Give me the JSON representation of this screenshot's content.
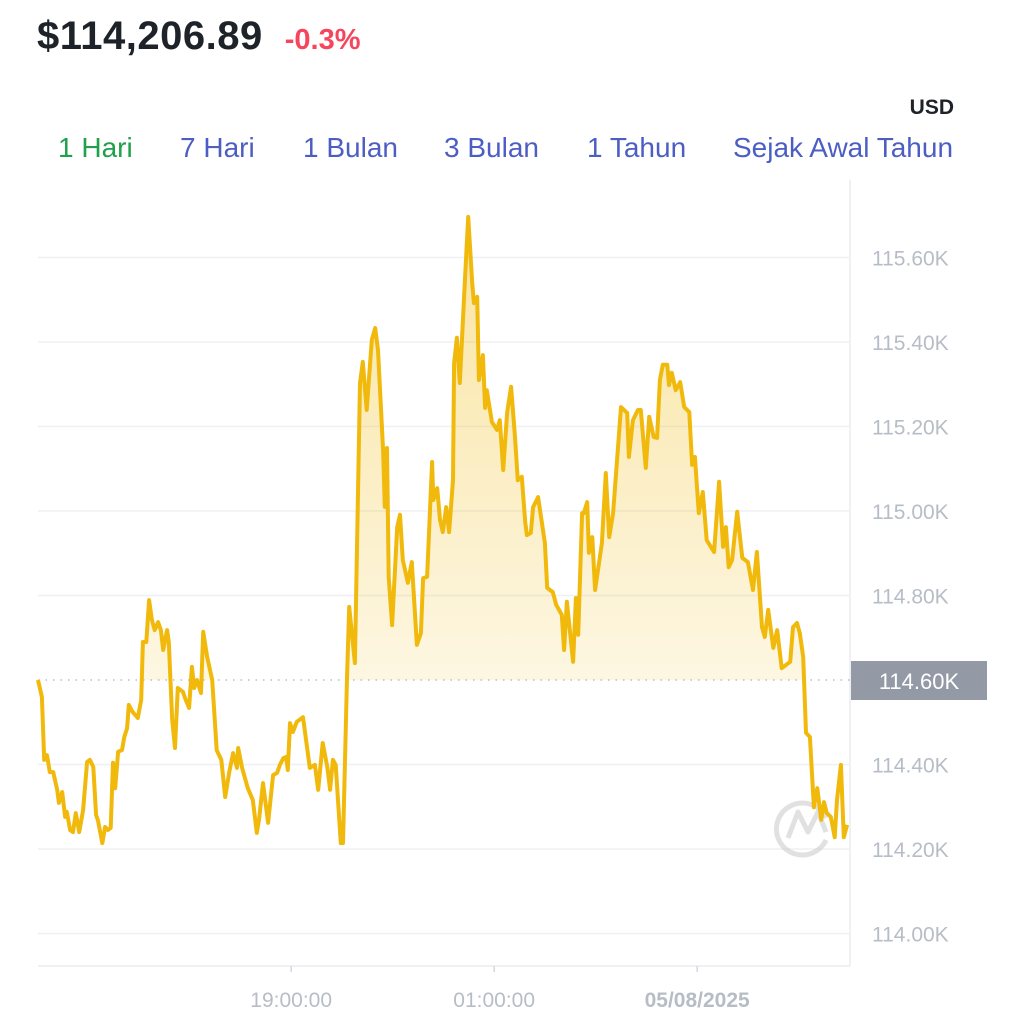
{
  "header": {
    "price": "$114,206.89",
    "change": "-0.3%",
    "change_color": "#f6465d",
    "currency": "USD"
  },
  "tabs": [
    {
      "label": "1 Hari",
      "active": true
    },
    {
      "label": "7 Hari",
      "active": false
    },
    {
      "label": "1 Bulan",
      "active": false
    },
    {
      "label": "3 Bulan",
      "active": false
    },
    {
      "label": "1 Tahun",
      "active": false
    },
    {
      "label": "Sejak Awal Tahun",
      "active": false
    }
  ],
  "colors": {
    "active_tab": "#1fa04a",
    "tab": "#4c5ec4",
    "line": "#f0b90b",
    "price_tag": "#939aa6"
  },
  "chart_data": {
    "type": "area",
    "title": "",
    "xlabel": "",
    "ylabel": "",
    "y_unit": "K USD",
    "ylim": [
      113.95,
      115.85
    ],
    "yticks": [
      "114.00K",
      "114.20K",
      "114.40K",
      "114.60K",
      "114.80K",
      "115.00K",
      "115.20K",
      "115.40K",
      "115.60K"
    ],
    "ytick_values": [
      114.0,
      114.2,
      114.4,
      114.6,
      114.8,
      115.0,
      115.2,
      115.4,
      115.6
    ],
    "xticks": [
      {
        "label": "19:00:00",
        "time": "19:00",
        "bold": false
      },
      {
        "label": "01:00:00",
        "time": "01:00",
        "bold": false
      },
      {
        "label": "05/08/2025",
        "time": "07:00",
        "bold": true
      }
    ],
    "baseline": 114.6,
    "baseline_label": "114.60K",
    "grid": true,
    "watermark": "CoinMarketCap logo",
    "series": [
      {
        "points": [
          [
            "11:31",
            114.6
          ],
          [
            "11:38",
            114.56
          ],
          [
            "11:42",
            114.411
          ],
          [
            "11:47",
            114.422
          ],
          [
            "11:52",
            114.382
          ],
          [
            "11:58",
            114.382
          ],
          [
            "12:05",
            114.34
          ],
          [
            "12:08",
            114.309
          ],
          [
            "12:14",
            114.335
          ],
          [
            "12:19",
            114.276
          ],
          [
            "12:22",
            114.288
          ],
          [
            "12:28",
            114.245
          ],
          [
            "12:33",
            114.24
          ],
          [
            "12:38",
            114.285
          ],
          [
            "12:44",
            114.24
          ],
          [
            "12:51",
            114.292
          ],
          [
            "12:58",
            114.406
          ],
          [
            "13:03",
            114.411
          ],
          [
            "13:09",
            114.394
          ],
          [
            "13:14",
            114.28
          ],
          [
            "13:17",
            114.269
          ],
          [
            "13:25",
            114.214
          ],
          [
            "13:30",
            114.252
          ],
          [
            "13:35",
            114.245
          ],
          [
            "13:40",
            114.25
          ],
          [
            "13:44",
            114.404
          ],
          [
            "13:48",
            114.344
          ],
          [
            "13:53",
            114.43
          ],
          [
            "14:00",
            114.434
          ],
          [
            "14:04",
            114.465
          ],
          [
            "14:09",
            114.486
          ],
          [
            "14:12",
            114.541
          ],
          [
            "14:19",
            114.524
          ],
          [
            "14:28",
            114.51
          ],
          [
            "14:34",
            114.553
          ],
          [
            "14:37",
            114.69
          ],
          [
            "14:43",
            114.69
          ],
          [
            "14:48",
            114.789
          ],
          [
            "14:53",
            114.742
          ],
          [
            "14:58",
            114.718
          ],
          [
            "15:04",
            114.737
          ],
          [
            "15:09",
            114.718
          ],
          [
            "15:13",
            114.671
          ],
          [
            "15:20",
            114.718
          ],
          [
            "15:23",
            114.69
          ],
          [
            "15:29",
            114.505
          ],
          [
            "15:34",
            114.439
          ],
          [
            "15:39",
            114.581
          ],
          [
            "15:48",
            114.572
          ],
          [
            "15:53",
            114.553
          ],
          [
            "15:59",
            114.534
          ],
          [
            "16:04",
            114.631
          ],
          [
            "16:08",
            114.581
          ],
          [
            "16:13",
            114.6
          ],
          [
            "16:20",
            114.569
          ],
          [
            "16:24",
            114.714
          ],
          [
            "16:31",
            114.654
          ],
          [
            "16:40",
            114.6
          ],
          [
            "16:48",
            114.434
          ],
          [
            "16:56",
            114.411
          ],
          [
            "17:03",
            114.323
          ],
          [
            "17:10",
            114.38
          ],
          [
            "17:17",
            114.427
          ],
          [
            "17:24",
            114.392
          ],
          [
            "17:26",
            114.439
          ],
          [
            "17:33",
            114.392
          ],
          [
            "17:43",
            114.344
          ],
          [
            "17:52",
            114.316
          ],
          [
            "17:59",
            114.238
          ],
          [
            "18:03",
            114.269
          ],
          [
            "18:10",
            114.356
          ],
          [
            "18:19",
            114.262
          ],
          [
            "18:28",
            114.375
          ],
          [
            "18:35",
            114.38
          ],
          [
            "18:40",
            114.399
          ],
          [
            "18:46",
            114.415
          ],
          [
            "18:51",
            114.418
          ],
          [
            "18:54",
            114.387
          ],
          [
            "18:58",
            114.498
          ],
          [
            "19:03",
            114.477
          ],
          [
            "19:10",
            114.501
          ],
          [
            "19:21",
            114.512
          ],
          [
            "19:33",
            114.392
          ],
          [
            "19:42",
            114.399
          ],
          [
            "19:48",
            114.34
          ],
          [
            "19:56",
            114.451
          ],
          [
            "20:04",
            114.394
          ],
          [
            "20:09",
            114.34
          ],
          [
            "20:14",
            114.411
          ],
          [
            "20:19",
            114.399
          ],
          [
            "20:28",
            114.214
          ],
          [
            "20:32",
            114.214
          ],
          [
            "20:39",
            114.605
          ],
          [
            "20:43",
            114.773
          ],
          [
            "20:53",
            114.64
          ],
          [
            "21:02",
            115.303
          ],
          [
            "21:07",
            115.353
          ],
          [
            "21:14",
            115.239
          ],
          [
            "21:23",
            115.405
          ],
          [
            "21:29",
            115.433
          ],
          [
            "21:34",
            115.381
          ],
          [
            "21:43",
            115.144
          ],
          [
            "21:46",
            115.01
          ],
          [
            "21:50",
            115.149
          ],
          [
            "21:53",
            114.844
          ],
          [
            "21:59",
            114.73
          ],
          [
            "22:08",
            114.962
          ],
          [
            "22:13",
            114.991
          ],
          [
            "22:18",
            114.884
          ],
          [
            "22:27",
            114.83
          ],
          [
            "22:34",
            114.879
          ],
          [
            "22:43",
            114.683
          ],
          [
            "22:50",
            114.711
          ],
          [
            "22:54",
            114.841
          ],
          [
            "23:01",
            114.844
          ],
          [
            "23:10",
            115.116
          ],
          [
            "23:12",
            115.026
          ],
          [
            "23:19",
            115.054
          ],
          [
            "23:24",
            114.979
          ],
          [
            "23:29",
            114.95
          ],
          [
            "23:35",
            115.009
          ],
          [
            "23:40",
            114.95
          ],
          [
            "23:47",
            115.073
          ],
          [
            "23:49",
            115.35
          ],
          [
            "23:54",
            115.41
          ],
          [
            "23:59",
            115.303
          ],
          [
            "00:08",
            115.54
          ],
          [
            "00:14",
            115.696
          ],
          [
            "00:21",
            115.54
          ],
          [
            "00:24",
            115.492
          ],
          [
            "00:30",
            115.507
          ],
          [
            "00:33",
            115.31
          ],
          [
            "00:40",
            115.369
          ],
          [
            "00:44",
            115.244
          ],
          [
            "00:47",
            115.286
          ],
          [
            "00:56",
            115.211
          ],
          [
            "01:05",
            115.192
          ],
          [
            "01:10",
            115.215
          ],
          [
            "01:16",
            115.097
          ],
          [
            "01:23",
            115.232
          ],
          [
            "01:30",
            115.294
          ],
          [
            "01:37",
            115.175
          ],
          [
            "01:42",
            115.073
          ],
          [
            "01:49",
            115.081
          ],
          [
            "01:55",
            114.974
          ],
          [
            "01:58",
            114.943
          ],
          [
            "02:05",
            114.948
          ],
          [
            "02:09",
            115.009
          ],
          [
            "02:18",
            115.033
          ],
          [
            "02:30",
            114.924
          ],
          [
            "02:34",
            114.818
          ],
          [
            "02:44",
            114.808
          ],
          [
            "02:50",
            114.778
          ],
          [
            "03:00",
            114.754
          ],
          [
            "03:04",
            114.671
          ],
          [
            "03:09",
            114.785
          ],
          [
            "03:20",
            114.643
          ],
          [
            "03:25",
            114.794
          ],
          [
            "03:29",
            114.707
          ],
          [
            "03:36",
            114.995
          ],
          [
            "03:39",
            114.995
          ],
          [
            "03:45",
            115.021
          ],
          [
            "03:48",
            114.901
          ],
          [
            "03:54",
            114.938
          ],
          [
            "03:59",
            114.813
          ],
          [
            "04:11",
            114.924
          ],
          [
            "04:18",
            115.09
          ],
          [
            "04:24",
            114.938
          ],
          [
            "04:31",
            114.995
          ],
          [
            "04:45",
            115.246
          ],
          [
            "04:56",
            115.232
          ],
          [
            "04:59",
            115.128
          ],
          [
            "05:06",
            115.215
          ],
          [
            "05:15",
            115.239
          ],
          [
            "05:20",
            115.239
          ],
          [
            "05:29",
            115.102
          ],
          [
            "05:35",
            115.223
          ],
          [
            "05:43",
            115.175
          ],
          [
            "05:49",
            115.173
          ],
          [
            "05:54",
            115.31
          ],
          [
            "05:59",
            115.346
          ],
          [
            "06:07",
            115.346
          ],
          [
            "06:10",
            115.298
          ],
          [
            "06:15",
            115.327
          ],
          [
            "06:22",
            115.286
          ],
          [
            "06:30",
            115.305
          ],
          [
            "06:37",
            115.246
          ],
          [
            "06:46",
            115.234
          ],
          [
            "06:51",
            115.109
          ],
          [
            "06:56",
            115.128
          ],
          [
            "07:03",
            114.995
          ],
          [
            "07:10",
            115.045
          ],
          [
            "07:17",
            114.931
          ],
          [
            "07:30",
            114.903
          ],
          [
            "07:39",
            115.069
          ],
          [
            "07:46",
            114.915
          ],
          [
            "07:51",
            114.962
          ],
          [
            "07:56",
            114.867
          ],
          [
            "08:02",
            114.884
          ],
          [
            "08:11",
            114.998
          ],
          [
            "08:20",
            114.889
          ],
          [
            "08:30",
            114.879
          ],
          [
            "08:39",
            114.813
          ],
          [
            "08:46",
            114.903
          ],
          [
            "08:55",
            114.725
          ],
          [
            "09:00",
            114.702
          ],
          [
            "09:06",
            114.766
          ],
          [
            "09:15",
            114.676
          ],
          [
            "09:22",
            114.718
          ],
          [
            "09:30",
            114.628
          ],
          [
            "09:45",
            114.643
          ],
          [
            "09:50",
            114.725
          ],
          [
            "09:57",
            114.735
          ],
          [
            "10:02",
            114.711
          ],
          [
            "10:08",
            114.654
          ],
          [
            "10:13",
            114.475
          ],
          [
            "10:20",
            114.465
          ],
          [
            "10:27",
            114.299
          ],
          [
            "10:33",
            114.344
          ],
          [
            "10:40",
            114.269
          ],
          [
            "10:45",
            114.311
          ],
          [
            "10:50",
            114.285
          ],
          [
            "10:57",
            114.276
          ],
          [
            "11:04",
            114.228
          ],
          [
            "11:08",
            114.316
          ],
          [
            "11:15",
            114.399
          ],
          [
            "11:20",
            114.228
          ],
          [
            "11:26",
            114.257
          ]
        ]
      }
    ]
  }
}
